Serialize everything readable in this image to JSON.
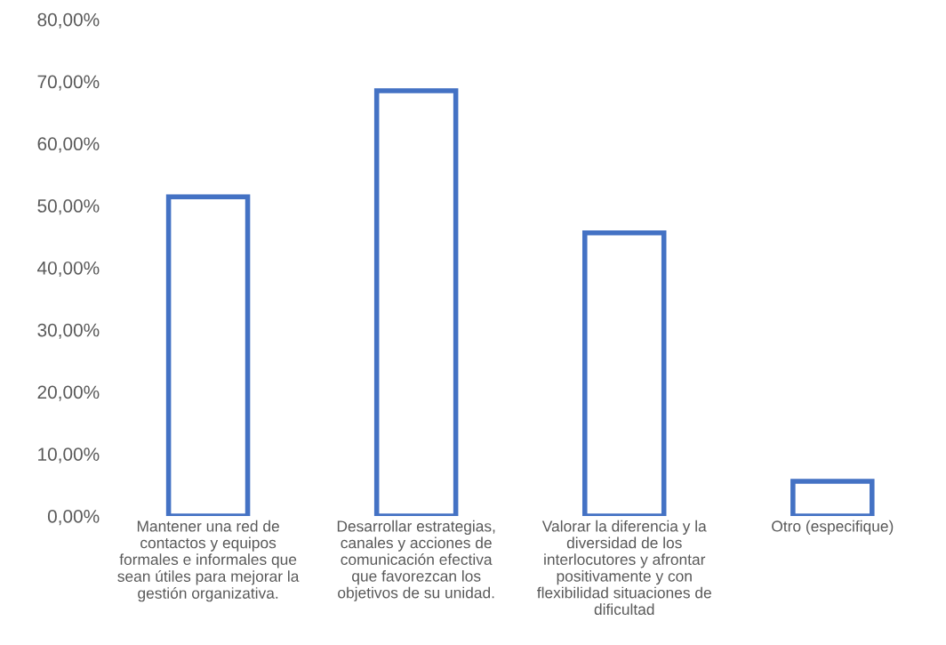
{
  "chart_data": {
    "type": "bar",
    "categories": [
      "Mantener una red de\ncontactos y equipos\nformales e informales que\nsean útiles para mejorar la\ngestión organizativa.",
      "Desarrollar estrategias,\ncanales y acciones de\ncomunicación efectiva\nque favorezcan los\nobjetivos de su unidad.",
      "Valorar la diferencia y la\ndiversidad de los\ninterlocutores y afrontar\npositivamente y con\nflexibilidad situaciones de\ndificultad",
      "Otro (especifique)"
    ],
    "values": [
      51.4,
      68.5,
      45.6,
      5.6
    ],
    "color": "#4472c4",
    "ylim": [
      0,
      80
    ],
    "yticks": [
      {
        "value": 0,
        "label": "0,00%"
      },
      {
        "value": 10,
        "label": "10,00%"
      },
      {
        "value": 20,
        "label": "20,00%"
      },
      {
        "value": 30,
        "label": "30,00%"
      },
      {
        "value": 40,
        "label": "40,00%"
      },
      {
        "value": 50,
        "label": "50,00%"
      },
      {
        "value": 60,
        "label": "60,00%"
      },
      {
        "value": 70,
        "label": "70,00%"
      },
      {
        "value": 80,
        "label": "80,00%"
      }
    ],
    "grid": false,
    "legend": false
  }
}
